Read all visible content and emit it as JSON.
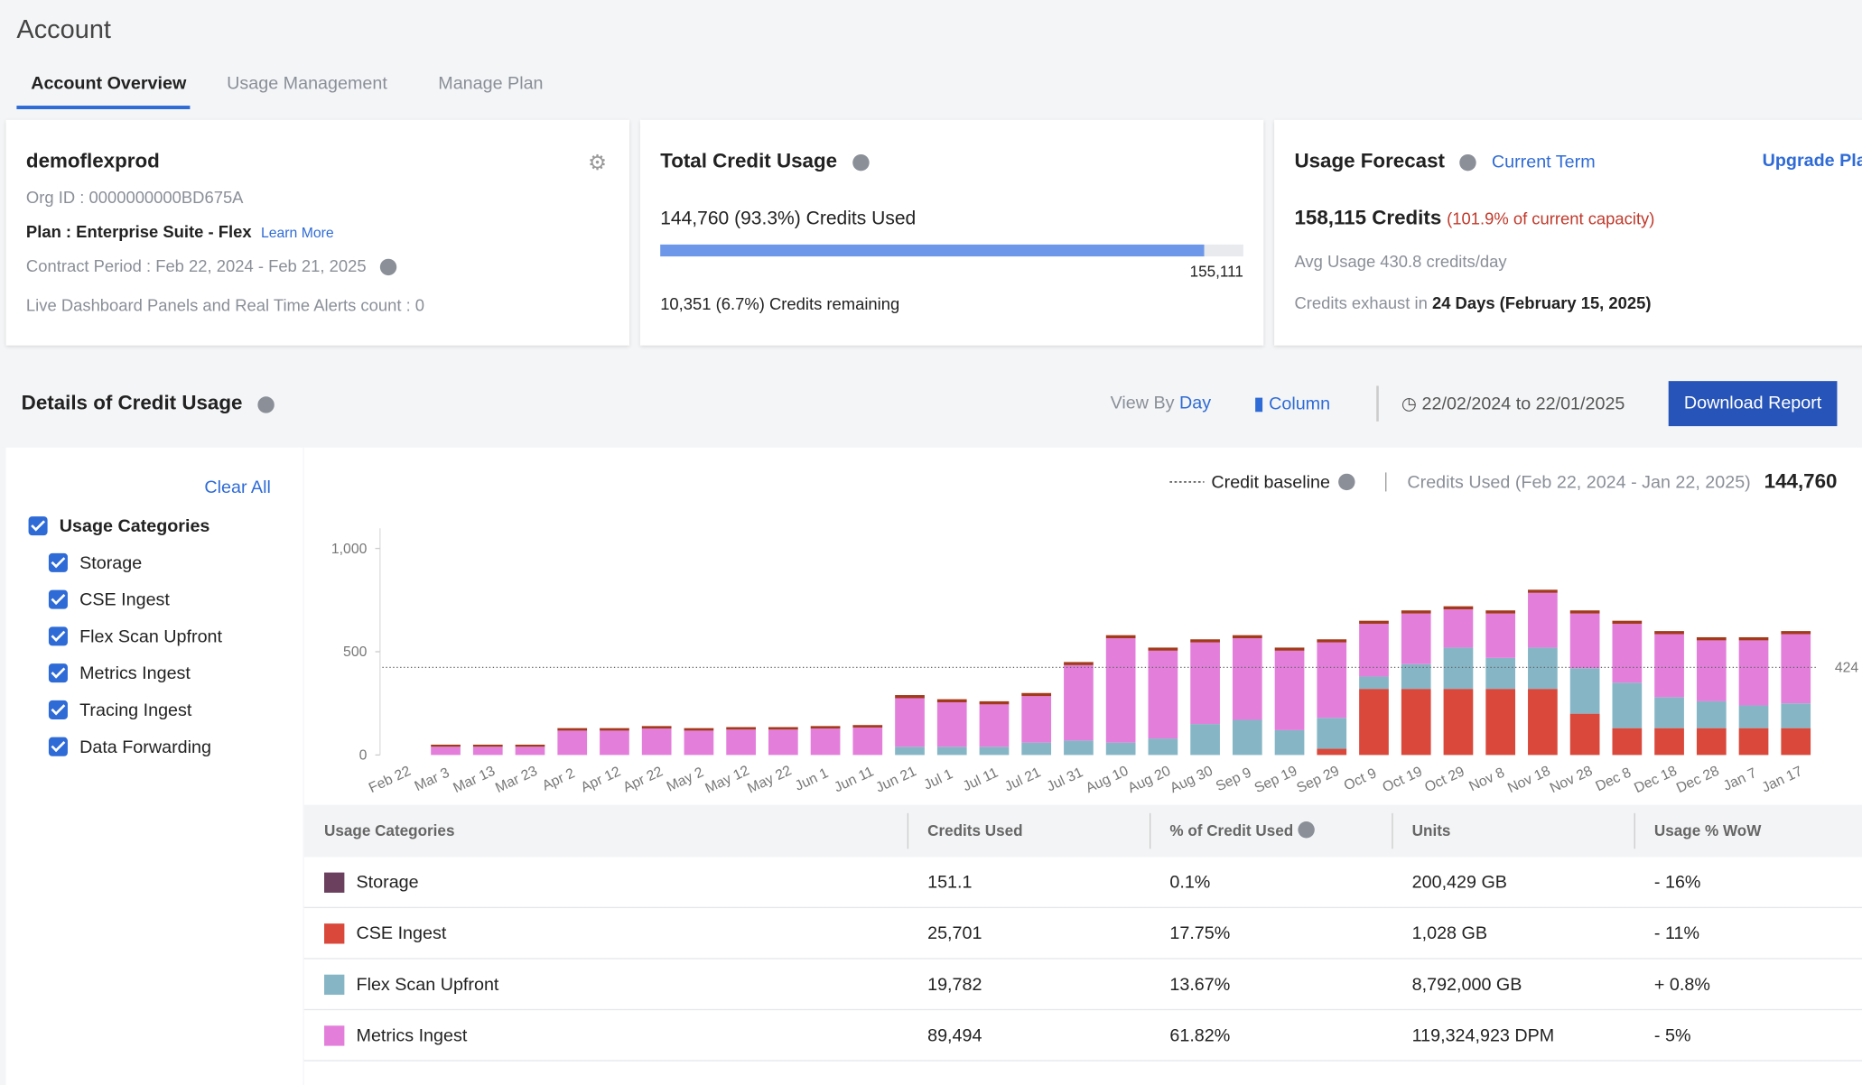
{
  "header": {
    "title": "Account",
    "tabs": [
      "Account Overview",
      "Usage Management",
      "Manage Plan"
    ]
  },
  "org_card": {
    "name": "demoflexprod",
    "org_id": "Org ID : 0000000000BD675A",
    "plan": "Plan : Enterprise Suite - Flex",
    "learn_more": "Learn More",
    "contract": "Contract Period : Feb 22, 2024 - Feb 21, 2025",
    "live": "Live Dashboard Panels and Real Time Alerts count : 0"
  },
  "usage_card": {
    "title": "Total Credit Usage",
    "used": "144,760 (93.3%) Credits Used",
    "progress": {
      "value": 144760,
      "max": {
        "value": 155111,
        "label": "155,111"
      }
    },
    "remaining": "10,351 (6.7%) Credits remaining"
  },
  "forecast_card": {
    "title": "Usage Forecast",
    "term": "Current Term",
    "upgrade": "Upgrade Plan",
    "credits": "158,115 Credits",
    "capacity": "(101.9% of current capacity)",
    "avg": "Avg Usage 430.8 credits/day",
    "exhaust_prefix": "Credits exhaust in",
    "exhaust": "24 Days (February 15, 2025)"
  },
  "details": {
    "title": "Details of Credit Usage",
    "view_by": "View By",
    "view_value": "Day",
    "chart_kind": "Column",
    "range": "22/02/2024 to 22/01/2025",
    "download": "Download Report"
  },
  "filters": {
    "clear": "Clear All",
    "group": "Usage Categories",
    "items": [
      "Storage",
      "CSE Ingest",
      "Flex Scan Upfront",
      "Metrics Ingest",
      "Tracing Ingest",
      "Data Forwarding"
    ]
  },
  "chart_data": {
    "type": "stacked_bar",
    "legend_baseline": "Credit baseline",
    "credits_used_label": "Credits Used (Feb 22, 2024 - Jan 22, 2025)",
    "credits_used_total": "144,760",
    "categories": [
      "Feb 22",
      "Mar 3",
      "Mar 13",
      "Mar 23",
      "Apr 2",
      "Apr 12",
      "Apr 22",
      "May 2",
      "May 12",
      "May 22",
      "Jun 1",
      "Jun 11",
      "Jun 21",
      "Jul 1",
      "Jul 11",
      "Jul 21",
      "Jul 31",
      "Aug 10",
      "Aug 20",
      "Aug 30",
      "Sep 9",
      "Sep 19",
      "Sep 29",
      "Oct 9",
      "Oct 19",
      "Oct 29",
      "Nov 8",
      "Nov 18",
      "Nov 28",
      "Dec 8",
      "Dec 18",
      "Dec 28",
      "Jan 7",
      "Jan 17"
    ],
    "series": [
      {
        "name": "CSE Ingest",
        "color": "#d9483b",
        "values": [
          0,
          0,
          0,
          0,
          0,
          0,
          0,
          0,
          0,
          0,
          0,
          0,
          0,
          0,
          0,
          0,
          0,
          0,
          0,
          0,
          0,
          0,
          30,
          320,
          320,
          320,
          320,
          320,
          200,
          130,
          130,
          130,
          130,
          130
        ]
      },
      {
        "name": "Flex Scan Upfront",
        "color": "#86b6c6",
        "values": [
          0,
          0,
          0,
          0,
          0,
          0,
          0,
          0,
          0,
          0,
          0,
          0,
          40,
          40,
          40,
          60,
          70,
          60,
          80,
          150,
          170,
          120,
          150,
          60,
          120,
          200,
          150,
          200,
          220,
          220,
          150,
          130,
          110,
          120
        ]
      },
      {
        "name": "Metrics Ingest",
        "color": "#e37fdb",
        "values": [
          0,
          40,
          40,
          40,
          118,
          118,
          128,
          118,
          123,
          123,
          128,
          133,
          235,
          215,
          205,
          225,
          365,
          505,
          425,
          395,
          395,
          385,
          365,
          255,
          245,
          185,
          215,
          265,
          265,
          285,
          305,
          295,
          315,
          335
        ]
      },
      {
        "name": "Storage",
        "color": "#a33a1c",
        "values": [
          0,
          10,
          10,
          10,
          12,
          12,
          12,
          12,
          12,
          12,
          12,
          12,
          15,
          15,
          15,
          15,
          15,
          15,
          15,
          15,
          15,
          15,
          15,
          15,
          15,
          15,
          15,
          15,
          15,
          15,
          15,
          15,
          15,
          15
        ]
      }
    ],
    "baseline": 424,
    "ylim": [
      0,
      1000
    ],
    "yticks": [
      0,
      500,
      {
        "value": 1000,
        "label": "1,000"
      }
    ]
  },
  "table": {
    "headers": [
      "Usage Categories",
      "Credits Used",
      "% of Credit Used",
      "Units",
      "Usage % WoW"
    ],
    "rows": [
      {
        "color": "#6b3f5e",
        "cells": [
          "Storage",
          "151.1",
          "0.1%",
          "200,429 GB",
          "- 16%"
        ]
      },
      {
        "color": "#d9483b",
        "cells": [
          "CSE Ingest",
          "25,701",
          "17.75%",
          "1,028 GB",
          "- 11%"
        ]
      },
      {
        "color": "#86b6c6",
        "cells": [
          "Flex Scan Upfront",
          "19,782",
          "13.67%",
          "8,792,000 GB",
          "+ 0.8%"
        ]
      },
      {
        "color": "#e37fdb",
        "cells": [
          "Metrics Ingest",
          "89,494",
          "61.82%",
          "119,324,923 DPM",
          "- 5%"
        ]
      }
    ]
  }
}
